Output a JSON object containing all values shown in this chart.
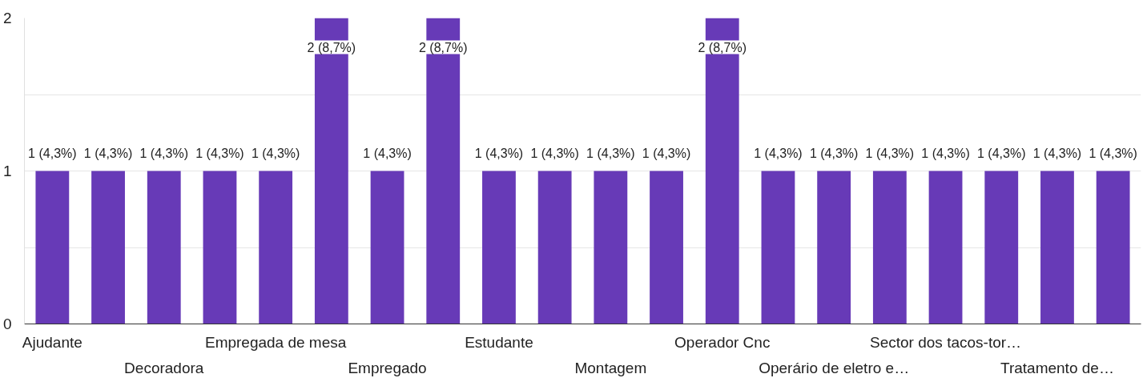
{
  "chart_data": {
    "type": "bar",
    "categories": [
      "Ajudante",
      null,
      "Decoradora",
      null,
      "Empregada de mesa",
      null,
      "Empregado",
      null,
      "Estudante",
      null,
      "Montagem",
      null,
      "Operador Cnc",
      null,
      "Operário de eletro e…",
      null,
      "Sector dos tacos-tor…",
      null,
      "Tratamento de…",
      null
    ],
    "values": [
      1,
      1,
      1,
      1,
      1,
      2,
      1,
      2,
      1,
      1,
      1,
      1,
      2,
      1,
      1,
      1,
      1,
      1,
      1,
      1
    ],
    "value_labels": [
      "1 (4,3%)",
      "1 (4,3%)",
      "1 (4,3%)",
      "1 (4,3%)",
      "1 (4,3%)",
      "2 (8,7%)",
      "1 (4,3%)",
      "2 (8,7%)",
      "1 (4,3%)",
      "1 (4,3%)",
      "1 (4,3%)",
      "1 (4,3%)",
      "2 (8,7%)",
      "1 (4,3%)",
      "1 (4,3%)",
      "1 (4,3%)",
      "1 (4,3%)",
      "1 (4,3%)",
      "1 (4,3%)",
      "1 (4,3%)"
    ],
    "color": "#673ab7",
    "ylim": [
      0,
      2
    ],
    "yticks": [
      0,
      {
        "value": 0.5,
        "label": null
      },
      1,
      {
        "value": 1.5,
        "label": null
      },
      2
    ],
    "grid": "y"
  }
}
